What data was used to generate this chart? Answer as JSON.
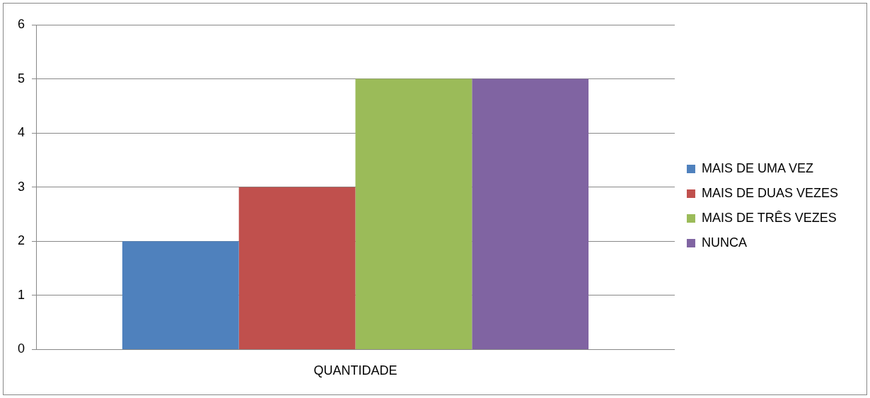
{
  "chart_data": {
    "type": "bar",
    "categories": [
      "QUANTIDADE"
    ],
    "series": [
      {
        "name": "MAIS DE UMA VEZ",
        "color": "#4f81bd",
        "values": [
          2
        ]
      },
      {
        "name": "MAIS DE DUAS VEZES",
        "color": "#c0504d",
        "values": [
          3
        ]
      },
      {
        "name": "MAIS DE TRÊS VEZES",
        "color": "#9bbb59",
        "values": [
          5
        ]
      },
      {
        "name": "NUNCA",
        "color": "#8064a2",
        "values": [
          5
        ]
      }
    ],
    "ylim": [
      0,
      6
    ],
    "yticks": [
      0,
      1,
      2,
      3,
      4,
      5,
      6
    ],
    "grid": "y",
    "legend": "right"
  }
}
